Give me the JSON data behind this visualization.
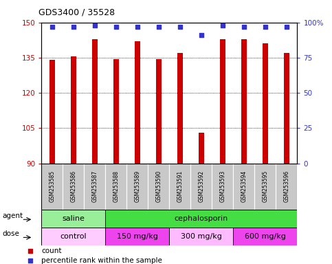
{
  "title": "GDS3400 / 35528",
  "samples": [
    "GSM253585",
    "GSM253586",
    "GSM253587",
    "GSM253588",
    "GSM253589",
    "GSM253590",
    "GSM253591",
    "GSM253592",
    "GSM253593",
    "GSM253594",
    "GSM253595",
    "GSM253596"
  ],
  "counts": [
    134,
    135.5,
    143,
    134.5,
    142,
    134.5,
    137,
    103,
    143,
    143,
    141,
    137
  ],
  "percentile_ranks": [
    97,
    97,
    98,
    97,
    97,
    97,
    97,
    91,
    98,
    97,
    97,
    97
  ],
  "ylim_left": [
    90,
    150
  ],
  "ylim_right": [
    0,
    100
  ],
  "yticks_left": [
    90,
    105,
    120,
    135,
    150
  ],
  "yticks_right": [
    0,
    25,
    50,
    75,
    100
  ],
  "bar_color": "#cc0000",
  "dot_color": "#3333cc",
  "left_tick_color": "#cc0000",
  "right_tick_color": "#3333cc",
  "agent_groups": [
    {
      "label": "saline",
      "start": 0,
      "end": 3,
      "color": "#99ee99"
    },
    {
      "label": "cephalosporin",
      "start": 3,
      "end": 12,
      "color": "#44dd44"
    }
  ],
  "dose_groups": [
    {
      "label": "control",
      "start": 0,
      "end": 3,
      "color": "#ffccff"
    },
    {
      "label": "150 mg/kg",
      "start": 3,
      "end": 6,
      "color": "#ee44ee"
    },
    {
      "label": "300 mg/kg",
      "start": 6,
      "end": 9,
      "color": "#ffbbff"
    },
    {
      "label": "600 mg/kg",
      "start": 9,
      "end": 12,
      "color": "#ee44ee"
    }
  ],
  "legend_items": [
    {
      "label": "count",
      "color": "#cc0000",
      "marker": "s"
    },
    {
      "label": "percentile rank within the sample",
      "color": "#3333cc",
      "marker": "s"
    }
  ],
  "bar_width": 0.25,
  "grid_linestyle": "dotted",
  "background_color": "#ffffff",
  "xticklabels_bg": "#c8c8c8",
  "agent_label": "agent",
  "dose_label": "dose"
}
